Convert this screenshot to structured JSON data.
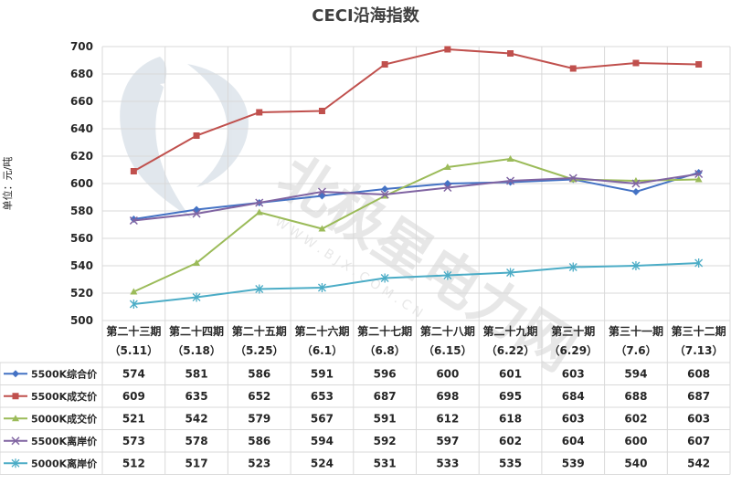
{
  "chart_data": {
    "type": "line",
    "title": "CECI沿海指数",
    "ylabel": "单位：元/吨",
    "ylim": [
      500,
      700
    ],
    "ytick_step": 20,
    "grid": true,
    "legend_placement": "data-table",
    "categories": [
      "第二十三期",
      "第二十四期",
      "第二十五期",
      "第二十六期",
      "第二十七期",
      "第二十八期",
      "第二十九期",
      "第三十期",
      "第三十一期",
      "第三十二期"
    ],
    "dates": [
      "（5.11）",
      "（5.18）",
      "（5.25）",
      "（6.1）",
      "（6.8）",
      "（6.15）",
      "（6.22）",
      "（6.29）",
      "（7.6）",
      "（7.13）"
    ],
    "series": [
      {
        "name": "5500K综合价",
        "color": "#4472c4",
        "marker": "diamond",
        "values": [
          574,
          581,
          586,
          591,
          596,
          600,
          601,
          603,
          594,
          608
        ]
      },
      {
        "name": "5500K成交价",
        "color": "#c0504d",
        "marker": "square",
        "values": [
          609,
          635,
          652,
          653,
          687,
          698,
          695,
          684,
          688,
          687
        ]
      },
      {
        "name": "5000K成交价",
        "color": "#9bbb59",
        "marker": "triangle",
        "values": [
          521,
          542,
          579,
          567,
          591,
          612,
          618,
          603,
          602,
          603
        ]
      },
      {
        "name": "5500K离岸价",
        "color": "#8064a2",
        "marker": "x",
        "values": [
          573,
          578,
          586,
          594,
          592,
          597,
          602,
          604,
          600,
          607
        ]
      },
      {
        "name": "5000K离岸价",
        "color": "#4bacc6",
        "marker": "star",
        "values": [
          512,
          517,
          523,
          524,
          531,
          533,
          535,
          539,
          540,
          542
        ]
      }
    ]
  },
  "watermark": {
    "main_text": "北极星电力网",
    "sub_text": "W W W . B J X . C O M . C N"
  }
}
